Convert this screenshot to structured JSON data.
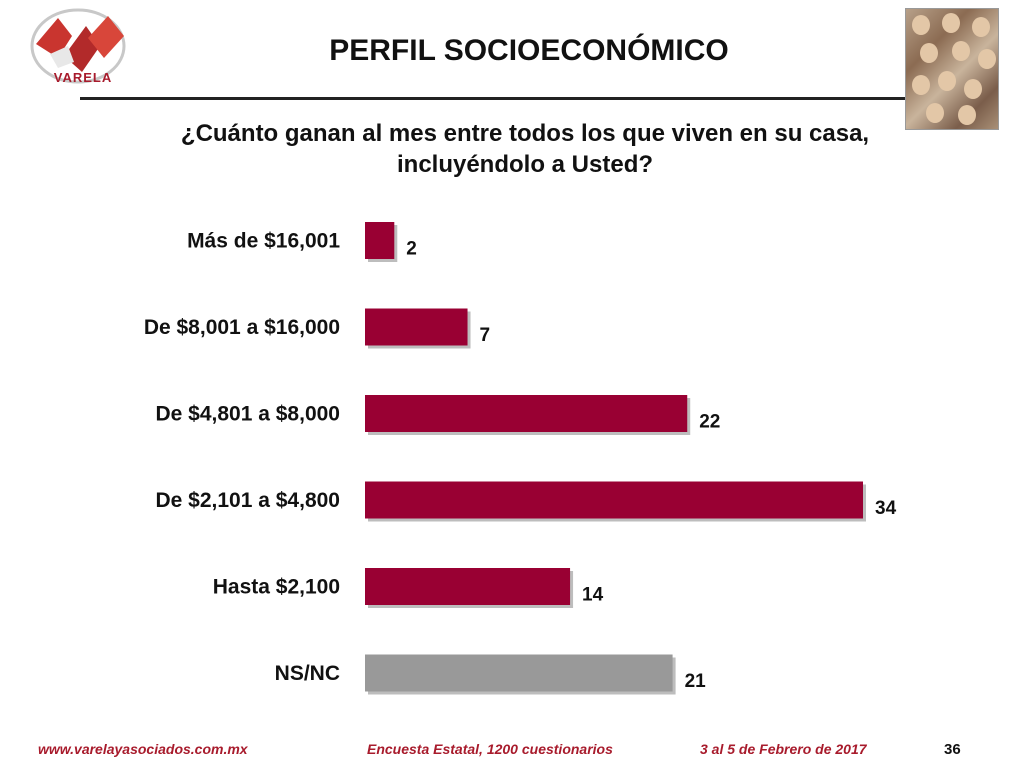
{
  "header": {
    "logo_text": "VARELA",
    "title": "PERFIL SOCIOECONÓMICO"
  },
  "question": "¿Cuánto ganan al mes entre todos los que viven en su casa, incluyéndolo a Usted?",
  "chart_data": {
    "type": "bar",
    "orientation": "horizontal",
    "categories": [
      "Más de $16,001",
      "De $8,001 a $16,000",
      "De $4,801 a $8,000",
      "De $2,101 a $4,800",
      "Hasta $2,100",
      "NS/NC"
    ],
    "values": [
      2,
      7,
      22,
      34,
      14,
      21
    ],
    "colors": [
      "#990033",
      "#990033",
      "#990033",
      "#990033",
      "#990033",
      "#999999"
    ],
    "xlim": [
      0,
      34
    ],
    "grid": false
  },
  "footer": {
    "website": "www.varelayasociados.com.mx",
    "survey": "Encuesta Estatal, 1200 cuestionarios",
    "date": "3 al 5 de Febrero de 2017",
    "page": "36"
  }
}
